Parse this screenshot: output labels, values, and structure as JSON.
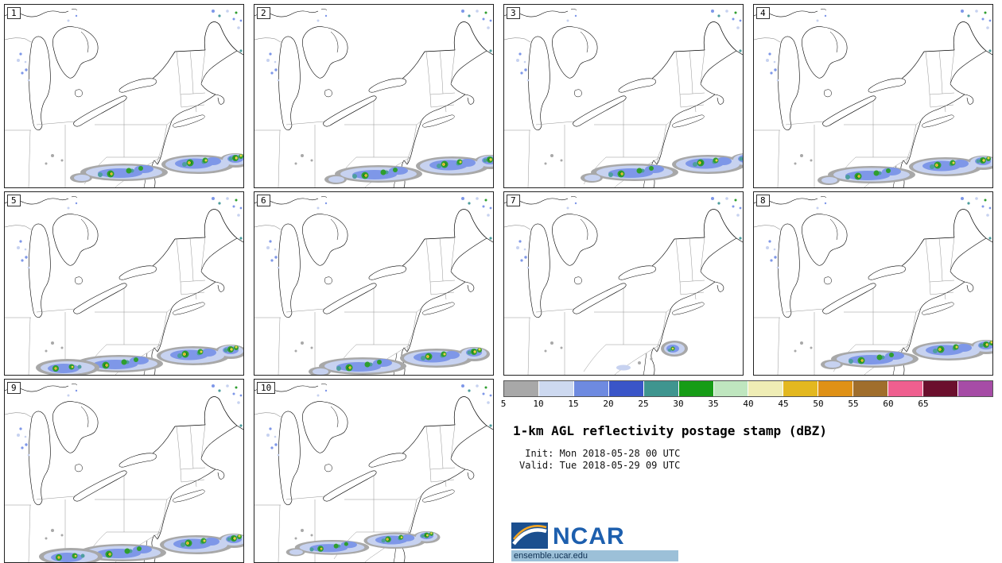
{
  "panels": [
    {
      "label": "1"
    },
    {
      "label": "2"
    },
    {
      "label": "3"
    },
    {
      "label": "4"
    },
    {
      "label": "5"
    },
    {
      "label": "6"
    },
    {
      "label": "7"
    },
    {
      "label": "8"
    },
    {
      "label": "9"
    },
    {
      "label": "10"
    }
  ],
  "legend": {
    "ticks": [
      "5",
      "10",
      "15",
      "20",
      "25",
      "30",
      "35",
      "40",
      "45",
      "50",
      "55",
      "60",
      "65"
    ],
    "colors": [
      "#a8a8a8",
      "#cdd9f0",
      "#6e8ae0",
      "#3a55c8",
      "#3f958f",
      "#169c16",
      "#bfe6bf",
      "#efedb5",
      "#e3b81f",
      "#df9116",
      "#a06e2c",
      "#ef5f8f",
      "#6b0f2d",
      "#a64ca6"
    ],
    "title": "1-km AGL reflectivity postage stamp (dBZ)",
    "units": "dBZ"
  },
  "info": {
    "init_line": " Init: Mon 2018-05-28 00 UTC",
    "valid_line": "Valid: Tue 2018-05-29 09 UTC"
  },
  "logo": {
    "name": "NCAR",
    "url_text": "ensemble.ucar.edu"
  }
}
